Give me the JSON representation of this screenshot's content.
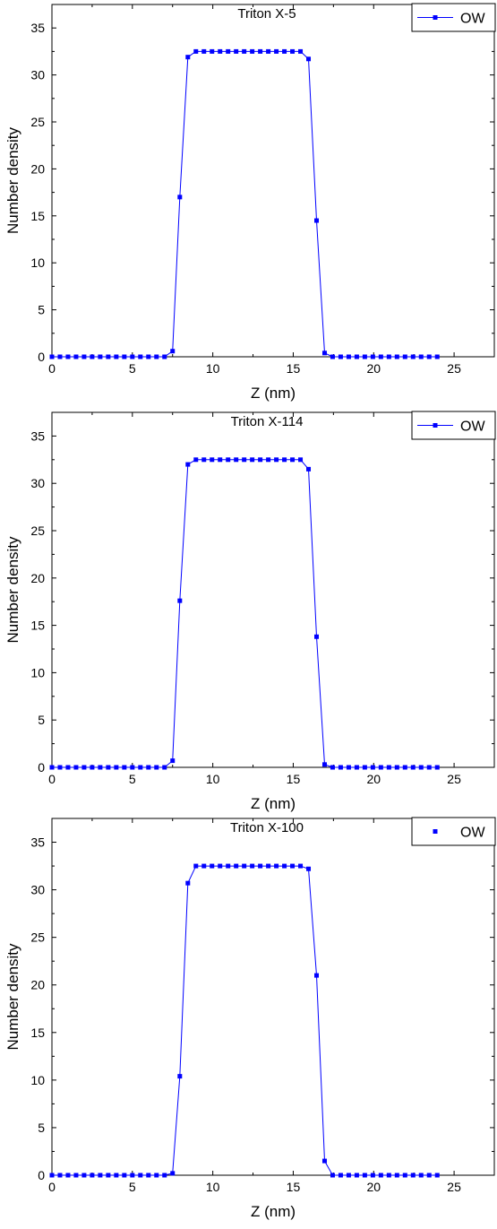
{
  "chart_data": [
    {
      "type": "line",
      "title": "Triton X-5",
      "xlabel": "Z (nm)",
      "ylabel": "Number density",
      "xlim": [
        0,
        27.5
      ],
      "ylim": [
        0,
        37.5
      ],
      "xticks": [
        0,
        5,
        10,
        15,
        20,
        25
      ],
      "yticks": [
        0,
        5,
        10,
        15,
        20,
        25,
        30,
        35
      ],
      "legend_position": "top-right",
      "series": [
        {
          "name": "OW",
          "color": "#0000ff",
          "show_line": true,
          "x": [
            0,
            0.5,
            1.0,
            1.5,
            2.0,
            2.5,
            3.0,
            3.5,
            4.0,
            4.5,
            5.0,
            5.5,
            6.0,
            6.5,
            7.0,
            7.5,
            7.95,
            8.45,
            8.95,
            9.45,
            9.95,
            10.45,
            10.95,
            11.45,
            11.95,
            12.45,
            12.95,
            13.45,
            13.95,
            14.45,
            14.95,
            15.45,
            15.95,
            16.45,
            16.95,
            17.45,
            17.95,
            18.45,
            18.95,
            19.45,
            19.95,
            20.45,
            20.95,
            21.45,
            21.95,
            22.45,
            22.95,
            23.45,
            23.95
          ],
          "y": [
            0,
            0,
            0,
            0,
            0,
            0,
            0,
            0,
            0,
            0,
            0,
            0,
            0,
            0,
            0,
            0.6,
            17.0,
            31.9,
            32.5,
            32.5,
            32.5,
            32.5,
            32.5,
            32.5,
            32.5,
            32.5,
            32.5,
            32.5,
            32.5,
            32.5,
            32.5,
            32.5,
            31.7,
            14.5,
            0.4,
            0,
            0,
            0,
            0,
            0,
            0,
            0,
            0,
            0,
            0,
            0,
            0,
            0,
            0
          ]
        }
      ]
    },
    {
      "type": "line",
      "title": "Triton X-114",
      "xlabel": "Z (nm)",
      "ylabel": "Number density",
      "xlim": [
        0,
        27.5
      ],
      "ylim": [
        0,
        37.5
      ],
      "xticks": [
        0,
        5,
        10,
        15,
        20,
        25
      ],
      "yticks": [
        0,
        5,
        10,
        15,
        20,
        25,
        30,
        35
      ],
      "legend_position": "top-right",
      "series": [
        {
          "name": "OW",
          "color": "#0000ff",
          "show_line": true,
          "x": [
            0,
            0.5,
            1.0,
            1.5,
            2.0,
            2.5,
            3.0,
            3.5,
            4.0,
            4.5,
            5.0,
            5.5,
            6.0,
            6.5,
            7.0,
            7.5,
            7.95,
            8.45,
            8.95,
            9.45,
            9.95,
            10.45,
            10.95,
            11.45,
            11.95,
            12.45,
            12.95,
            13.45,
            13.95,
            14.45,
            14.95,
            15.45,
            15.95,
            16.45,
            16.95,
            17.45,
            17.95,
            18.45,
            18.95,
            19.45,
            19.95,
            20.45,
            20.95,
            21.45,
            21.95,
            22.45,
            22.95,
            23.45,
            23.95
          ],
          "y": [
            0,
            0,
            0,
            0,
            0,
            0,
            0,
            0,
            0,
            0,
            0,
            0,
            0,
            0,
            0,
            0.7,
            17.6,
            32.0,
            32.5,
            32.5,
            32.5,
            32.5,
            32.5,
            32.5,
            32.5,
            32.5,
            32.5,
            32.5,
            32.5,
            32.5,
            32.5,
            32.5,
            31.5,
            13.8,
            0.3,
            0,
            0,
            0,
            0,
            0,
            0,
            0,
            0,
            0,
            0,
            0,
            0,
            0,
            0
          ]
        }
      ]
    },
    {
      "type": "scatter",
      "title": "Triton X-100",
      "xlabel": "Z (nm)",
      "ylabel": "Number density",
      "xlim": [
        0,
        27.5
      ],
      "ylim": [
        0,
        37.5
      ],
      "xticks": [
        0,
        5,
        10,
        15,
        20,
        25
      ],
      "yticks": [
        0,
        5,
        10,
        15,
        20,
        25,
        30,
        35
      ],
      "legend_position": "top-right",
      "series": [
        {
          "name": "OW",
          "color": "#0000ff",
          "show_line": true,
          "legend_line": false,
          "x": [
            0,
            0.5,
            1.0,
            1.5,
            2.0,
            2.5,
            3.0,
            3.5,
            4.0,
            4.5,
            5.0,
            5.5,
            6.0,
            6.5,
            7.0,
            7.5,
            7.95,
            8.45,
            8.95,
            9.45,
            9.95,
            10.45,
            10.95,
            11.45,
            11.95,
            12.45,
            12.95,
            13.45,
            13.95,
            14.45,
            14.95,
            15.45,
            15.95,
            16.45,
            16.95,
            17.45,
            17.95,
            18.45,
            18.95,
            19.45,
            19.95,
            20.45,
            20.95,
            21.45,
            21.95,
            22.45,
            22.95,
            23.45,
            23.95
          ],
          "y": [
            0,
            0,
            0,
            0,
            0,
            0,
            0,
            0,
            0,
            0,
            0,
            0,
            0,
            0,
            0,
            0.2,
            10.4,
            30.7,
            32.5,
            32.5,
            32.5,
            32.5,
            32.5,
            32.5,
            32.5,
            32.5,
            32.5,
            32.5,
            32.5,
            32.5,
            32.5,
            32.5,
            32.2,
            21.0,
            1.5,
            0,
            0,
            0,
            0,
            0,
            0,
            0,
            0,
            0,
            0,
            0,
            0,
            0,
            0
          ]
        }
      ]
    }
  ]
}
